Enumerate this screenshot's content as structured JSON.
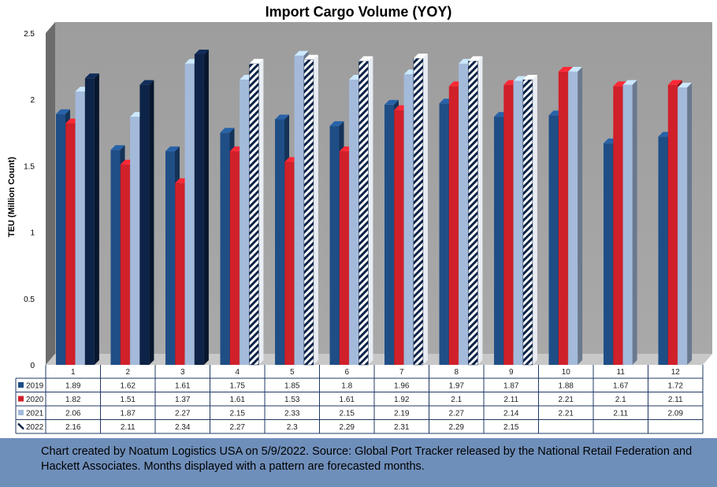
{
  "chart_data": {
    "type": "bar",
    "title": "Import Cargo Volume (YOY)",
    "ylabel": "TEU (Million Count)",
    "ylim": [
      0,
      2.5
    ],
    "yticks": [
      "0",
      "0.5",
      "1",
      "1.5",
      "2",
      "2.5"
    ],
    "categories": [
      "1",
      "2",
      "3",
      "4",
      "5",
      "6",
      "7",
      "8",
      "9",
      "10",
      "11",
      "12"
    ],
    "series": [
      {
        "name": "2019",
        "color": "#1f4e86",
        "values": [
          1.89,
          1.62,
          1.61,
          1.75,
          1.85,
          1.8,
          1.96,
          1.97,
          1.87,
          1.88,
          1.67,
          1.72
        ],
        "labels": [
          "1.89",
          "1.62",
          "1.61",
          "1.75",
          "1.85",
          "1.8",
          "1.96",
          "1.97",
          "1.87",
          "1.88",
          "1.67",
          "1.72"
        ],
        "forecast_from": 99
      },
      {
        "name": "2020",
        "color": "#d0202a",
        "values": [
          1.82,
          1.51,
          1.37,
          1.61,
          1.53,
          1.61,
          1.92,
          2.1,
          2.11,
          2.21,
          2.1,
          2.11
        ],
        "labels": [
          "1.82",
          "1.51",
          "1.37",
          "1.61",
          "1.53",
          "1.61",
          "1.92",
          "2.1",
          "2.11",
          "2.21",
          "2.1",
          "2.11"
        ],
        "forecast_from": 99
      },
      {
        "name": "2021",
        "color": "#a3badb",
        "values": [
          2.06,
          1.87,
          2.27,
          2.15,
          2.33,
          2.15,
          2.19,
          2.27,
          2.14,
          2.21,
          2.11,
          2.09
        ],
        "labels": [
          "2.06",
          "1.87",
          "2.27",
          "2.15",
          "2.33",
          "2.15",
          "2.19",
          "2.27",
          "2.14",
          "2.21",
          "2.11",
          "2.09"
        ],
        "forecast_from": 99
      },
      {
        "name": "2022",
        "color": "#0d2347",
        "values": [
          2.16,
          2.11,
          2.34,
          2.27,
          2.3,
          2.29,
          2.31,
          2.29,
          2.15,
          null,
          null,
          null
        ],
        "labels": [
          "2.16",
          "2.11",
          "2.34",
          "2.27",
          "2.3",
          "2.29",
          "2.31",
          "2.29",
          "2.15",
          "",
          "",
          ""
        ],
        "forecast_from": 3
      }
    ],
    "grid": false,
    "legend": "data-table"
  },
  "footer": {
    "text": "Chart created by Noatum Logistics USA on 5/9/2022. Source: Global Port Tracker released by the National Retail Federation and Hackett Associates. Months displayed with a pattern are forecasted months."
  }
}
